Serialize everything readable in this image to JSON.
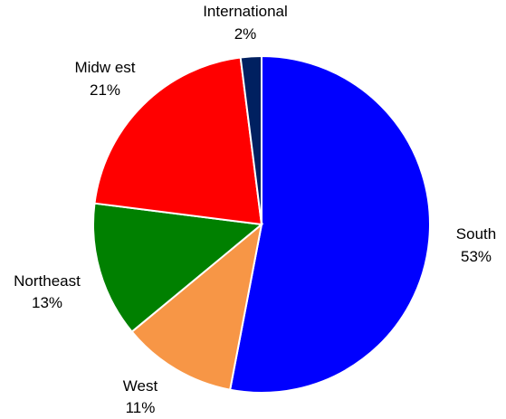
{
  "chart_data": {
    "type": "pie",
    "start": "12 o'clock, clockwise",
    "slices": [
      {
        "name": "South",
        "value": 53,
        "label_name": "South",
        "label_pct": "53%",
        "color": "#0000FF"
      },
      {
        "name": "West",
        "value": 11,
        "label_name": "West",
        "label_pct": "11%",
        "color": "#F79646"
      },
      {
        "name": "Northeast",
        "value": 13,
        "label_name": "Northeast",
        "label_pct": "13%",
        "color": "#008000"
      },
      {
        "name": "Midwest",
        "value": 21,
        "label_name": "Midw est",
        "label_pct": "21%",
        "color": "#FF0000"
      },
      {
        "name": "International",
        "value": 2,
        "label_name": "International",
        "label_pct": "2%",
        "color": "#002060"
      }
    ]
  }
}
